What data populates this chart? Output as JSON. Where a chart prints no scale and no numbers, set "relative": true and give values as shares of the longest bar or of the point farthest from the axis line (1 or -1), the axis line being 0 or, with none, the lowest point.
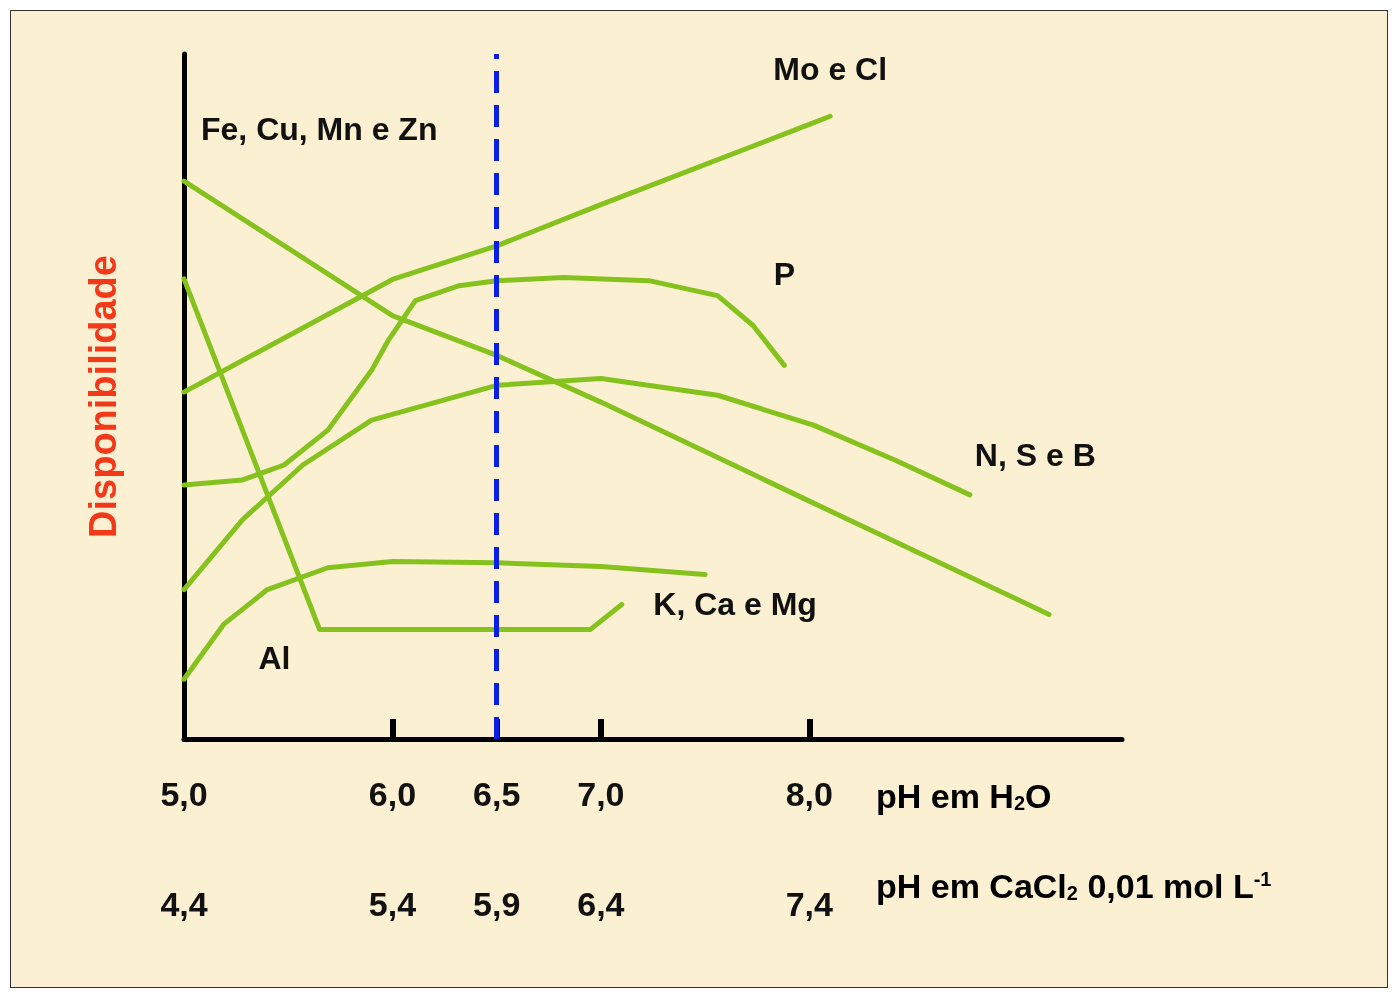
{
  "chart_data": {
    "type": "line",
    "relative": true,
    "ylabel": "Disponibilidade",
    "xlabel": "pH em H$_{2}$O",
    "x2label": "pH em CaCl$_{2}$ 0,01 mol L$^{-1}$",
    "xlim": [
      5.0,
      9.5
    ],
    "xticks": [
      {
        "value": 5.0,
        "label": "5,0"
      },
      {
        "value": 6.0,
        "label": "6,0"
      },
      {
        "value": 6.5,
        "label": "6,5"
      },
      {
        "value": 7.0,
        "label": "7,0"
      },
      {
        "value": 8.0,
        "label": "8,0"
      }
    ],
    "x2lim": [
      4.4,
      8.9
    ],
    "x2ticks": [
      {
        "value": 4.4,
        "label": "4,4"
      },
      {
        "value": 5.4,
        "label": "5,4"
      },
      {
        "value": 5.9,
        "label": "5,9"
      },
      {
        "value": 6.4,
        "label": "6,4"
      },
      {
        "value": 7.4,
        "label": "7,4"
      }
    ],
    "grid": false,
    "legend": false,
    "marker": "none",
    "line_style": "solid",
    "ref_lines": [
      {
        "axis": "x",
        "value": 6.5,
        "label": null,
        "color": "#0a1ee6",
        "line_style": "dashed"
      }
    ],
    "series": [
      {
        "name": "Fe, Cu, Mn e Zn",
        "color": "#86c21e",
        "x": [
          5.0,
          6.0,
          6.5,
          7.0,
          8.0,
          9.15
        ],
        "values": [
          0.896,
          0.68,
          0.616,
          0.541,
          0.382,
          0.2
        ]
      },
      {
        "name": "Mo e Cl",
        "color": "#86c21e",
        "x": [
          5.0,
          6.0,
          6.5,
          7.0,
          8.0,
          8.1
        ],
        "values": [
          0.557,
          0.738,
          0.792,
          0.858,
          0.987,
          1
        ]
      },
      {
        "name": "P",
        "color": "#86c21e",
        "x": [
          5.0,
          5.28,
          5.48,
          5.69,
          5.9,
          5.98,
          6.11,
          6.32,
          6.5,
          6.82,
          7.23,
          7.56,
          7.73,
          7.88
        ],
        "values": [
          0.408,
          0.416,
          0.44,
          0.496,
          0.592,
          0.64,
          0.704,
          0.728,
          0.736,
          0.741,
          0.736,
          0.712,
          0.664,
          0.6
        ]
      },
      {
        "name": "N, S e B",
        "color": "#86c21e",
        "x": [
          5.0,
          5.28,
          5.57,
          5.9,
          6.5,
          7.0,
          7.56,
          8.02,
          8.41,
          8.77
        ],
        "values": [
          0.24,
          0.352,
          0.44,
          0.512,
          0.568,
          0.579,
          0.552,
          0.504,
          0.448,
          0.392
        ]
      },
      {
        "name": "K, Ca e Mg",
        "color": "#86c21e",
        "x": [
          5.0,
          5.19,
          5.4,
          5.69,
          6.0,
          6.5,
          7.0,
          7.5
        ],
        "values": [
          0.096,
          0.184,
          0.24,
          0.275,
          0.285,
          0.283,
          0.277,
          0.264
        ]
      },
      {
        "name": "Al",
        "color": "#86c21e",
        "x": [
          5.0,
          5.65,
          6.95,
          7.1
        ],
        "values": [
          0.739,
          0.176,
          0.176,
          0.216
        ]
      }
    ]
  }
}
